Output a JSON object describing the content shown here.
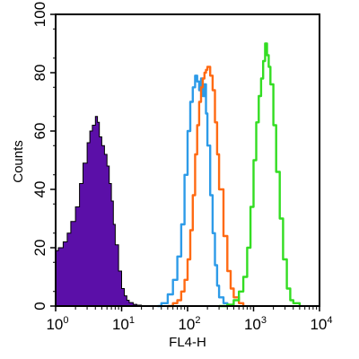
{
  "chart_data": {
    "type": "area",
    "title": "",
    "xlabel": "FL4-H",
    "ylabel": "Counts",
    "x_scale": "log",
    "xlim": [
      1,
      10000
    ],
    "ylim": [
      0,
      100
    ],
    "grid": false,
    "x_major_ticks": [
      {
        "base": "10",
        "exp": "0"
      },
      {
        "base": "10",
        "exp": "1"
      },
      {
        "base": "10",
        "exp": "2"
      },
      {
        "base": "10",
        "exp": "3"
      },
      {
        "base": "10",
        "exp": "4"
      }
    ],
    "y_ticks": [
      "0",
      "20",
      "40",
      "60",
      "80",
      "100"
    ],
    "series": [
      {
        "color": "#5b0fa8",
        "style": "filled",
        "x": [
          1,
          1.1,
          1.3,
          1.5,
          1.7,
          2,
          2.3,
          2.6,
          3,
          3.3,
          3.6,
          4,
          4.3,
          4.6,
          5,
          5.5,
          6,
          6.5,
          7,
          7.5,
          8,
          9,
          10,
          11,
          12,
          13,
          15,
          17,
          20,
          23
        ],
        "y": [
          19,
          20,
          22,
          25,
          29,
          34,
          42,
          49,
          56,
          60,
          62,
          65,
          63,
          58,
          55,
          52,
          48,
          42,
          36,
          28,
          21,
          12,
          6,
          3.5,
          2,
          1.2,
          0.6,
          0.3,
          0.1,
          0
        ]
      },
      {
        "color": "#2d9be8",
        "style": "line",
        "x": [
          35,
          40,
          50,
          60,
          70,
          80,
          90,
          100,
          110,
          120,
          130,
          140,
          150,
          160,
          170,
          180,
          190,
          200,
          220,
          240,
          260,
          280,
          300,
          350,
          400
        ],
        "y": [
          0,
          1,
          4,
          9,
          17,
          28,
          45,
          60,
          70,
          75,
          79,
          77,
          74,
          78,
          72,
          76,
          66,
          55,
          38,
          25,
          14,
          7,
          3,
          1,
          0
        ]
      },
      {
        "color": "#ff6a13",
        "style": "line",
        "x": [
          50,
          60,
          70,
          80,
          90,
          100,
          110,
          120,
          130,
          140,
          150,
          160,
          170,
          180,
          190,
          200,
          220,
          240,
          260,
          280,
          300,
          350,
          400,
          450,
          500,
          600,
          700
        ],
        "y": [
          0,
          1,
          2,
          5,
          9,
          16,
          26,
          38,
          52,
          62,
          70,
          75,
          78,
          80,
          81,
          82,
          79,
          74,
          63,
          52,
          40,
          24,
          12,
          6,
          3,
          1,
          0
        ]
      },
      {
        "color": "#33dd22",
        "style": "line",
        "x": [
          300,
          400,
          500,
          600,
          700,
          800,
          900,
          1000,
          1100,
          1200,
          1300,
          1400,
          1500,
          1600,
          1700,
          1800,
          2000,
          2200,
          2500,
          2800,
          3200,
          3600,
          4000,
          5000
        ],
        "y": [
          0,
          0.5,
          2,
          5,
          10,
          20,
          34,
          50,
          63,
          72,
          78,
          84,
          90,
          86,
          82,
          76,
          62,
          46,
          30,
          16,
          6,
          2,
          1,
          0
        ]
      }
    ]
  }
}
